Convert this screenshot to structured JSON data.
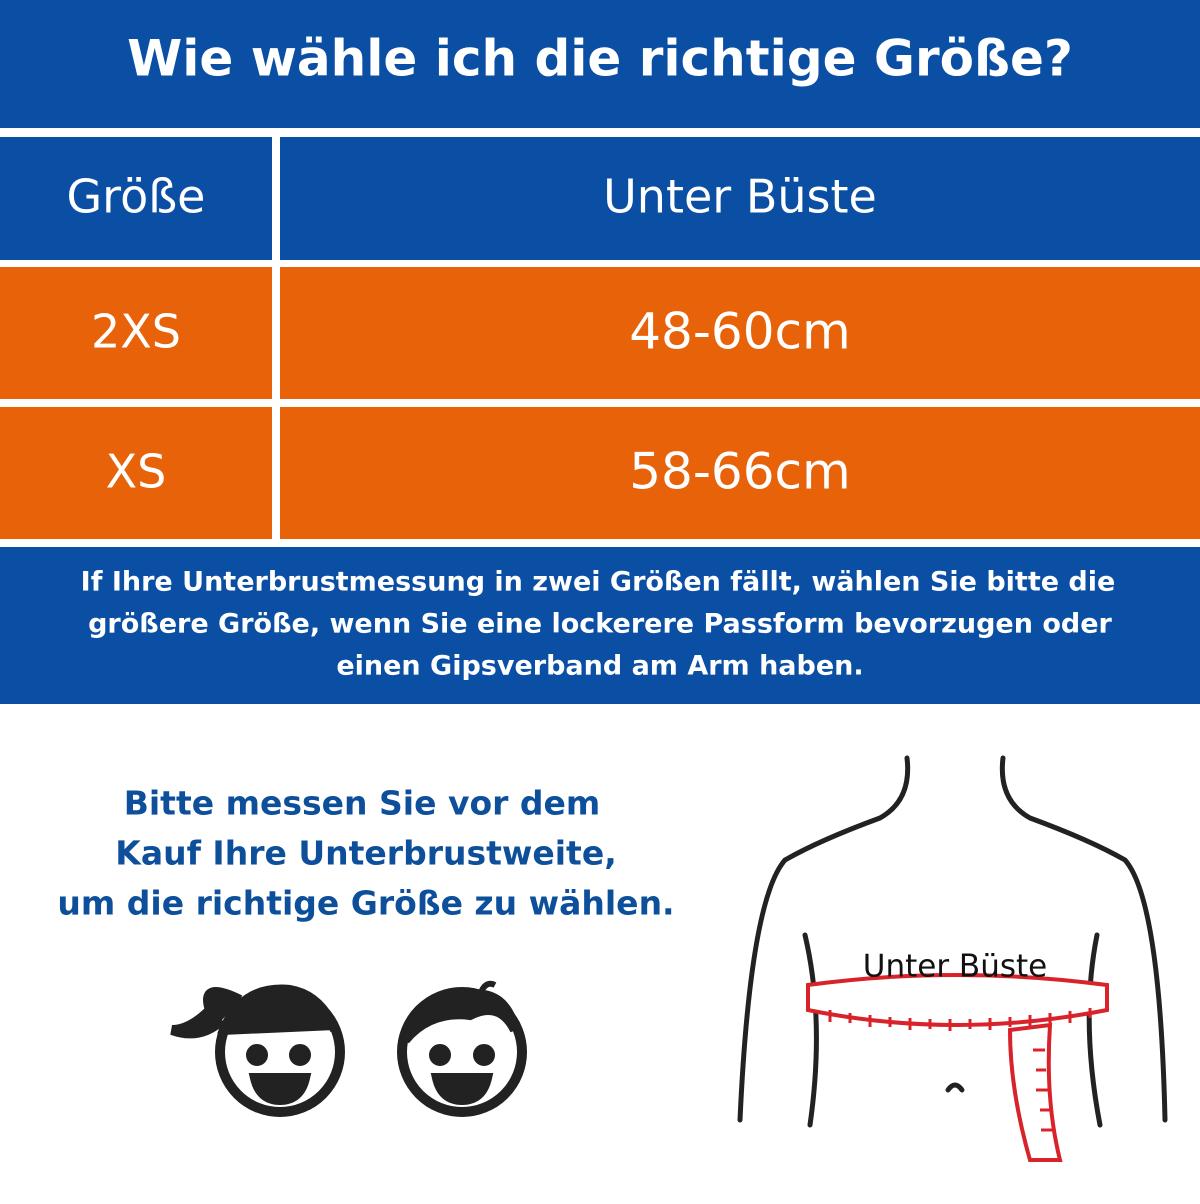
{
  "header": {
    "title": "Wie wähle ich die richtige Größe?"
  },
  "table": {
    "columns": [
      "Größe",
      "Unter Büste"
    ],
    "rows": [
      [
        "2XS",
        "48-60cm"
      ],
      [
        "XS",
        "58-66cm"
      ]
    ]
  },
  "note": {
    "lines": [
      "If Ihre Unterbrustmessung in zwei Größen fällt, wählen Sie bitte die",
      "größere Größe, wenn Sie eine lockerere Passform bevorzugen oder",
      "einen Gipsverband am Arm haben."
    ]
  },
  "instruction": {
    "lines": [
      "Bitte messen Sie vor dem",
      "Kauf Ihre Unterbrustweite,",
      "um die richtige Größe zu wählen."
    ]
  },
  "figure": {
    "label": "Unter Büste"
  }
}
